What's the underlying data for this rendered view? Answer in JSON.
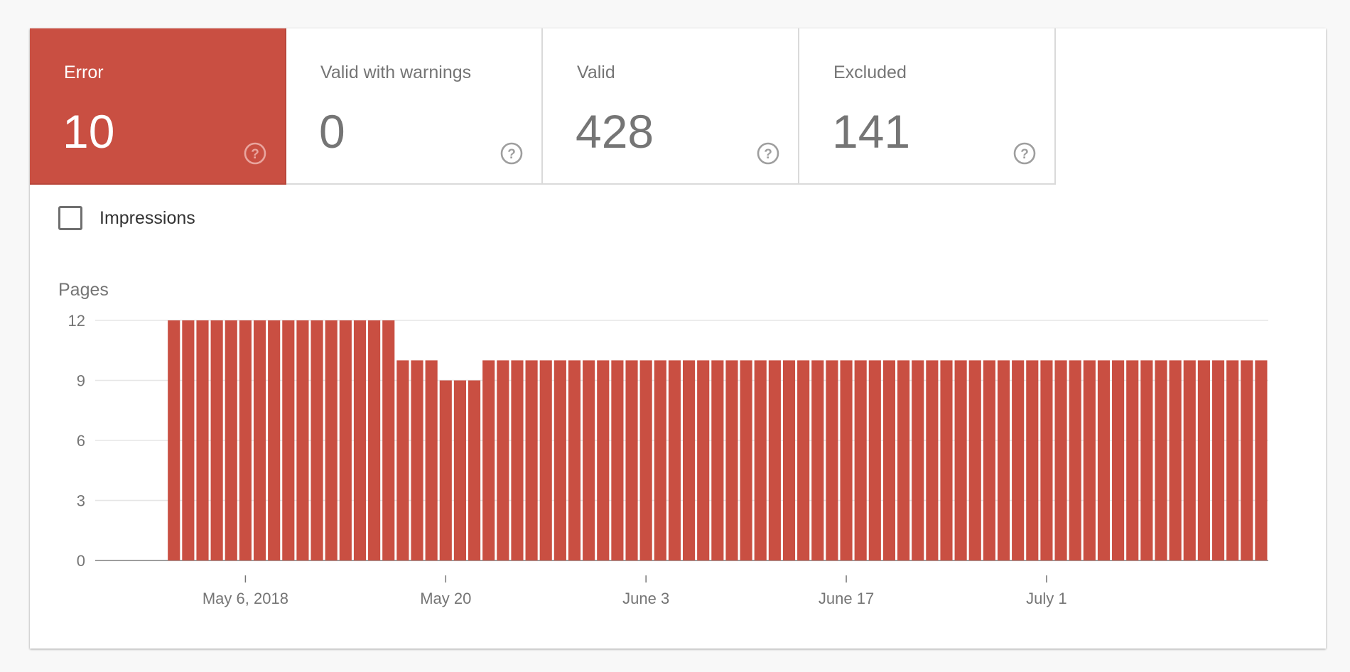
{
  "tabs": [
    {
      "label": "Error",
      "value": "10",
      "selected": true
    },
    {
      "label": "Valid with warnings",
      "value": "0",
      "selected": false
    },
    {
      "label": "Valid",
      "value": "428",
      "selected": false
    },
    {
      "label": "Excluded",
      "value": "141",
      "selected": false
    }
  ],
  "impressions": {
    "label": "Impressions",
    "checked": false
  },
  "colors": {
    "error": "#c94f42",
    "text_muted": "#757575",
    "grid": "#e6e6e6"
  },
  "chart_data": {
    "type": "bar",
    "ylabel": "Pages",
    "ylim": [
      0,
      12
    ],
    "yticks": [
      0,
      3,
      6,
      9,
      12
    ],
    "x_start": "2018-04-26",
    "x_end": "2018-07-16",
    "xtick_labels": [
      {
        "date": "2018-05-06",
        "label": "May 6, 2018"
      },
      {
        "date": "2018-05-20",
        "label": "May 20"
      },
      {
        "date": "2018-06-03",
        "label": "June 3"
      },
      {
        "date": "2018-06-17",
        "label": "June 17"
      },
      {
        "date": "2018-07-01",
        "label": "July 1"
      }
    ],
    "series": [
      {
        "color": "#c94f42",
        "points": [
          {
            "x": "2018-05-01",
            "y": 12
          },
          {
            "x": "2018-05-02",
            "y": 12
          },
          {
            "x": "2018-05-03",
            "y": 12
          },
          {
            "x": "2018-05-04",
            "y": 12
          },
          {
            "x": "2018-05-05",
            "y": 12
          },
          {
            "x": "2018-05-06",
            "y": 12
          },
          {
            "x": "2018-05-07",
            "y": 12
          },
          {
            "x": "2018-05-08",
            "y": 12
          },
          {
            "x": "2018-05-09",
            "y": 12
          },
          {
            "x": "2018-05-10",
            "y": 12
          },
          {
            "x": "2018-05-11",
            "y": 12
          },
          {
            "x": "2018-05-12",
            "y": 12
          },
          {
            "x": "2018-05-13",
            "y": 12
          },
          {
            "x": "2018-05-14",
            "y": 12
          },
          {
            "x": "2018-05-15",
            "y": 12
          },
          {
            "x": "2018-05-16",
            "y": 12
          },
          {
            "x": "2018-05-17",
            "y": 10
          },
          {
            "x": "2018-05-18",
            "y": 10
          },
          {
            "x": "2018-05-19",
            "y": 10
          },
          {
            "x": "2018-05-20",
            "y": 9
          },
          {
            "x": "2018-05-21",
            "y": 9
          },
          {
            "x": "2018-05-22",
            "y": 9
          },
          {
            "x": "2018-05-23",
            "y": 10
          },
          {
            "x": "2018-05-24",
            "y": 10
          },
          {
            "x": "2018-05-25",
            "y": 10
          },
          {
            "x": "2018-05-26",
            "y": 10
          },
          {
            "x": "2018-05-27",
            "y": 10
          },
          {
            "x": "2018-05-28",
            "y": 10
          },
          {
            "x": "2018-05-29",
            "y": 10
          },
          {
            "x": "2018-05-30",
            "y": 10
          },
          {
            "x": "2018-05-31",
            "y": 10
          },
          {
            "x": "2018-06-01",
            "y": 10
          },
          {
            "x": "2018-06-02",
            "y": 10
          },
          {
            "x": "2018-06-03",
            "y": 10
          },
          {
            "x": "2018-06-04",
            "y": 10
          },
          {
            "x": "2018-06-05",
            "y": 10
          },
          {
            "x": "2018-06-06",
            "y": 10
          },
          {
            "x": "2018-06-07",
            "y": 10
          },
          {
            "x": "2018-06-08",
            "y": 10
          },
          {
            "x": "2018-06-09",
            "y": 10
          },
          {
            "x": "2018-06-10",
            "y": 10
          },
          {
            "x": "2018-06-11",
            "y": 10
          },
          {
            "x": "2018-06-12",
            "y": 10
          },
          {
            "x": "2018-06-13",
            "y": 10
          },
          {
            "x": "2018-06-14",
            "y": 10
          },
          {
            "x": "2018-06-15",
            "y": 10
          },
          {
            "x": "2018-06-16",
            "y": 10
          },
          {
            "x": "2018-06-17",
            "y": 10
          },
          {
            "x": "2018-06-18",
            "y": 10
          },
          {
            "x": "2018-06-19",
            "y": 10
          },
          {
            "x": "2018-06-20",
            "y": 10
          },
          {
            "x": "2018-06-21",
            "y": 10
          },
          {
            "x": "2018-06-22",
            "y": 10
          },
          {
            "x": "2018-06-23",
            "y": 10
          },
          {
            "x": "2018-06-24",
            "y": 10
          },
          {
            "x": "2018-06-25",
            "y": 10
          },
          {
            "x": "2018-06-26",
            "y": 10
          },
          {
            "x": "2018-06-27",
            "y": 10
          },
          {
            "x": "2018-06-28",
            "y": 10
          },
          {
            "x": "2018-06-29",
            "y": 10
          },
          {
            "x": "2018-06-30",
            "y": 10
          },
          {
            "x": "2018-07-01",
            "y": 10
          },
          {
            "x": "2018-07-02",
            "y": 10
          },
          {
            "x": "2018-07-03",
            "y": 10
          },
          {
            "x": "2018-07-04",
            "y": 10
          },
          {
            "x": "2018-07-05",
            "y": 10
          },
          {
            "x": "2018-07-06",
            "y": 10
          },
          {
            "x": "2018-07-07",
            "y": 10
          },
          {
            "x": "2018-07-08",
            "y": 10
          },
          {
            "x": "2018-07-09",
            "y": 10
          },
          {
            "x": "2018-07-10",
            "y": 10
          },
          {
            "x": "2018-07-11",
            "y": 10
          },
          {
            "x": "2018-07-12",
            "y": 10
          },
          {
            "x": "2018-07-13",
            "y": 10
          },
          {
            "x": "2018-07-14",
            "y": 10
          },
          {
            "x": "2018-07-15",
            "y": 10
          },
          {
            "x": "2018-07-16",
            "y": 10
          }
        ]
      }
    ],
    "grid": true
  }
}
